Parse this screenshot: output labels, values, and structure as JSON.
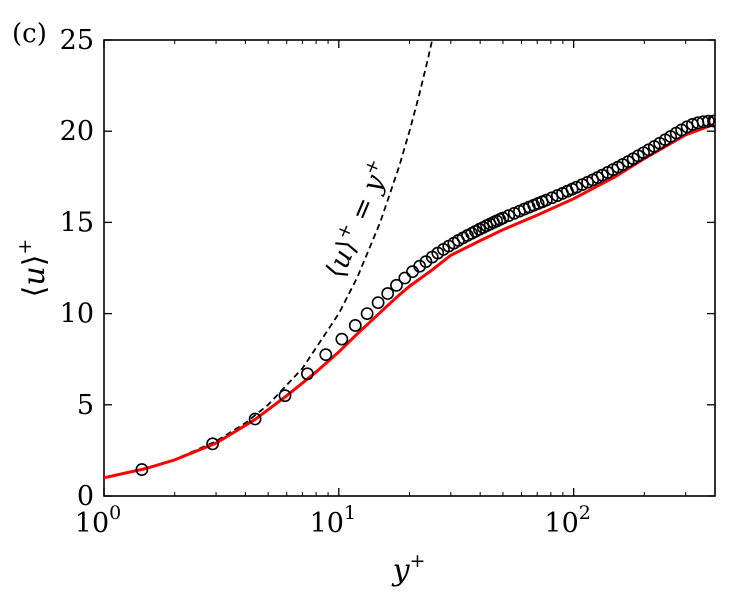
{
  "chart_data": {
    "type": "line",
    "panel_label": "(c)",
    "xlabel": "y+",
    "ylabel": "⟨u⟩+",
    "xscale": "log",
    "xlim": [
      1,
      400
    ],
    "ylim": [
      0,
      25
    ],
    "xticks": [
      {
        "value": 1,
        "base": "10",
        "exp": "0"
      },
      {
        "value": 10,
        "base": "10",
        "exp": "1"
      },
      {
        "value": 100,
        "base": "10",
        "exp": "2"
      }
    ],
    "yticks": [
      "0",
      "5",
      "10",
      "15",
      "20",
      "25"
    ],
    "grid": false,
    "annotation": "⟨u⟩+ = y+",
    "colors": {
      "red_curve": "#ff0000",
      "dashed": "#000000",
      "markers": "#000000"
    },
    "series": [
      {
        "style": "dashed-black-line",
        "x": [
          1,
          1.5,
          2,
          3,
          4,
          5,
          7,
          10,
          12,
          15,
          18,
          20,
          22,
          24,
          25.5
        ],
        "y": [
          1,
          1.5,
          2,
          3,
          4,
          5,
          7,
          10,
          12,
          15,
          18,
          20,
          22,
          24,
          25.5
        ]
      },
      {
        "style": "solid-red-line",
        "x": [
          1,
          1.5,
          2,
          3,
          4.4,
          6,
          8,
          10,
          12,
          14,
          16,
          18,
          20,
          25,
          30,
          40,
          50,
          70,
          100,
          150,
          200,
          300,
          400
        ],
        "y": [
          1.0,
          1.5,
          1.98,
          2.9,
          4.2,
          5.5,
          6.8,
          7.9,
          8.9,
          9.7,
          10.4,
          11.0,
          11.5,
          12.4,
          13.2,
          14.0,
          14.6,
          15.4,
          16.3,
          17.5,
          18.5,
          19.8,
          20.4
        ]
      },
      {
        "style": "open-black-circles",
        "x": [
          1.45,
          2.9,
          4.4,
          5.9,
          7.35,
          8.8,
          10.3,
          11.75,
          13.2,
          14.7,
          16.15,
          17.6,
          19.1,
          20.6,
          22.1,
          23.5,
          25,
          26.4,
          27.9,
          29.4,
          30.9,
          32.3,
          33.8,
          35.3,
          36.8,
          38.2,
          39.7,
          41.2,
          42.6,
          44.1,
          45.6,
          47,
          48.5,
          50,
          52.9,
          55.9,
          58.8,
          61.7,
          64.7,
          67.6,
          70.6,
          73.5,
          76.5,
          80.9,
          85.3,
          89.7,
          94.1,
          98.5,
          102.9,
          108.8,
          114.7,
          120.6,
          126.5,
          132.4,
          139.7,
          147.1,
          154.4,
          161.8,
          170.6,
          179.4,
          188.2,
          198.5,
          208.8,
          220.6,
          232.4,
          245.6,
          258.8,
          273.5,
          288.2,
          304.4,
          320.6,
          338.2,
          355.9,
          375,
          394.1,
          400
        ],
        "y": [
          1.45,
          2.86,
          4.22,
          5.5,
          6.7,
          7.75,
          8.6,
          9.35,
          10.0,
          10.6,
          11.1,
          11.55,
          11.95,
          12.3,
          12.6,
          12.85,
          13.1,
          13.32,
          13.52,
          13.7,
          13.86,
          14.01,
          14.15,
          14.28,
          14.4,
          14.51,
          14.62,
          14.72,
          14.82,
          14.91,
          15.0,
          15.08,
          15.16,
          15.24,
          15.37,
          15.5,
          15.62,
          15.73,
          15.84,
          15.94,
          16.04,
          16.13,
          16.22,
          16.35,
          16.47,
          16.59,
          16.71,
          16.82,
          16.93,
          17.07,
          17.2,
          17.33,
          17.46,
          17.59,
          17.74,
          17.89,
          18.03,
          18.17,
          18.33,
          18.49,
          18.65,
          18.82,
          18.98,
          19.16,
          19.34,
          19.53,
          19.71,
          19.9,
          20.07,
          20.24,
          20.37,
          20.46,
          20.52,
          20.55,
          20.56,
          20.56
        ]
      }
    ]
  }
}
